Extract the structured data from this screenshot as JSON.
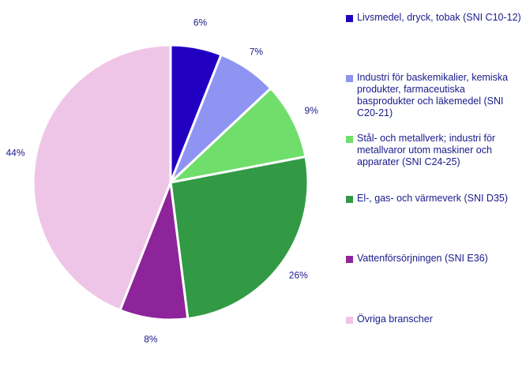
{
  "chart_data": {
    "type": "pie",
    "title": "",
    "start_angle_deg": 0,
    "direction": "clockwise",
    "slices": [
      {
        "label": "Livsmedel, dryck, tobak (SNI C10-12)",
        "value": 6,
        "value_label": "6%",
        "color": "#2200c2"
      },
      {
        "label": "Industri för baskemikalier, kemiska produkter, farmaceutiska basprodukter och läkemedel (SNI C20-21)",
        "value": 7,
        "value_label": "7%",
        "color": "#8f94f2"
      },
      {
        "label": "Stål- och metallverk; industri för metallvaror utom maskiner och apparater (SNI C24-25)",
        "value": 9,
        "value_label": "9%",
        "color": "#6fde6b"
      },
      {
        "label": "El-, gas- och värmeverk (SNI D35)",
        "value": 26,
        "value_label": "26%",
        "color": "#329a45"
      },
      {
        "label": "Vattenförsörjningen (SNI E36)",
        "value": 8,
        "value_label": "8%",
        "color": "#8d2499"
      },
      {
        "label": "Övriga branscher",
        "value": 44,
        "value_label": "44%",
        "color": "#efc5e7"
      }
    ],
    "legend_position": "right"
  }
}
